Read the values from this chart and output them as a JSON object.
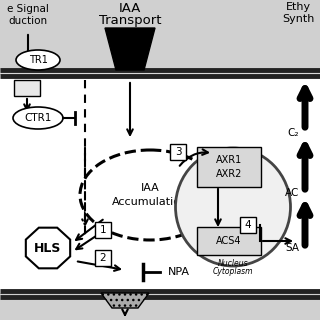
{
  "bg_color": "#d8d8d8",
  "cell_bg": "#ffffff",
  "membrane_color": "#333333",
  "text_signal": "e Signal",
  "text_duction": "duction",
  "text_iaa_top1": "IAA",
  "text_iaa_top2": "Transport",
  "text_ethy1": "Ethy",
  "text_ethy2": "Synth",
  "text_iaa_accum": "IAA\nAccumulation",
  "text_hls": "HLS",
  "text_ctr1_box": "TR1",
  "text_ctr1_oval": "CTR1",
  "text_npa": "NPA",
  "text_axr": "AXR1\nAXR2",
  "text_acs4": "ACS4",
  "text_c2": "C₂",
  "text_ac": "AC",
  "text_sa": "SA",
  "text_nucleus": "Nucleus",
  "text_cytoplasm": "Cytoplasm",
  "num1": "1",
  "num2": "2",
  "num3": "3",
  "num4": "4"
}
